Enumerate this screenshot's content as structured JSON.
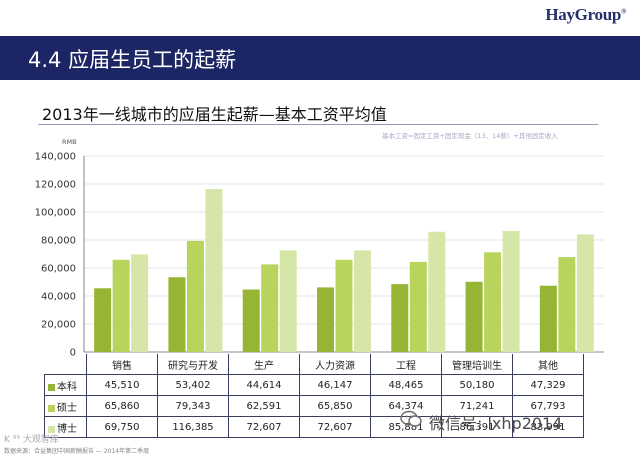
{
  "header": {
    "logo_main": "HayGroup",
    "logo_mark": "®",
    "section_title": "4.4 应届生员工的起薪"
  },
  "chart_title": "2013年一线城市的应届生起薪—基本工资平均值",
  "note": "基本工资=固定工资+固定现金（13、14薪）+其他固定收入",
  "watermark": "微信号: lxhp2014",
  "corner_logo": "K ⁹⁹ 大观智库",
  "source_text": "数据来源：合益集团中国薪酬报告 — 2014年第二季度",
  "colors": {
    "bachelor": "#97b534",
    "master": "#b9d45c",
    "phd": "#d6e6a8",
    "title_bar": "#1d2664",
    "logo": "#23306b"
  },
  "chart_data": {
    "type": "bar",
    "title": "2013年一线城市的应届生起薪—基本工资平均值",
    "ylabel": "RMB",
    "ylim": [
      0,
      140000
    ],
    "y_ticks": [
      "0",
      "20,000",
      "40,000",
      "60,000",
      "80,000",
      "100,000",
      "120,000",
      "140,000"
    ],
    "grid": true,
    "legend": "table-rows",
    "categories": [
      "销售",
      "研究与开发",
      "生产",
      "人力资源",
      "工程",
      "管理培训生",
      "其他"
    ],
    "series": [
      {
        "name": "本科",
        "values": [
          45510,
          53402,
          44614,
          46147,
          48465,
          50180,
          47329
        ],
        "labels": [
          "45,510",
          "53,402",
          "44,614",
          "46,147",
          "48,465",
          "50,180",
          "47,329"
        ]
      },
      {
        "name": "硕士",
        "values": [
          65860,
          79343,
          62591,
          65850,
          64374,
          71241,
          67793
        ],
        "labels": [
          "65,860",
          "79,343",
          "62,591",
          "65,850",
          "64,374",
          "71,241",
          "67,793"
        ]
      },
      {
        "name": "博士",
        "values": [
          69750,
          116385,
          72607,
          72607,
          85881,
          86391,
          83991
        ],
        "labels": [
          "69,750",
          "116,385",
          "72,607",
          "72,607",
          "85,881",
          "86,391",
          "83,991"
        ]
      }
    ]
  }
}
